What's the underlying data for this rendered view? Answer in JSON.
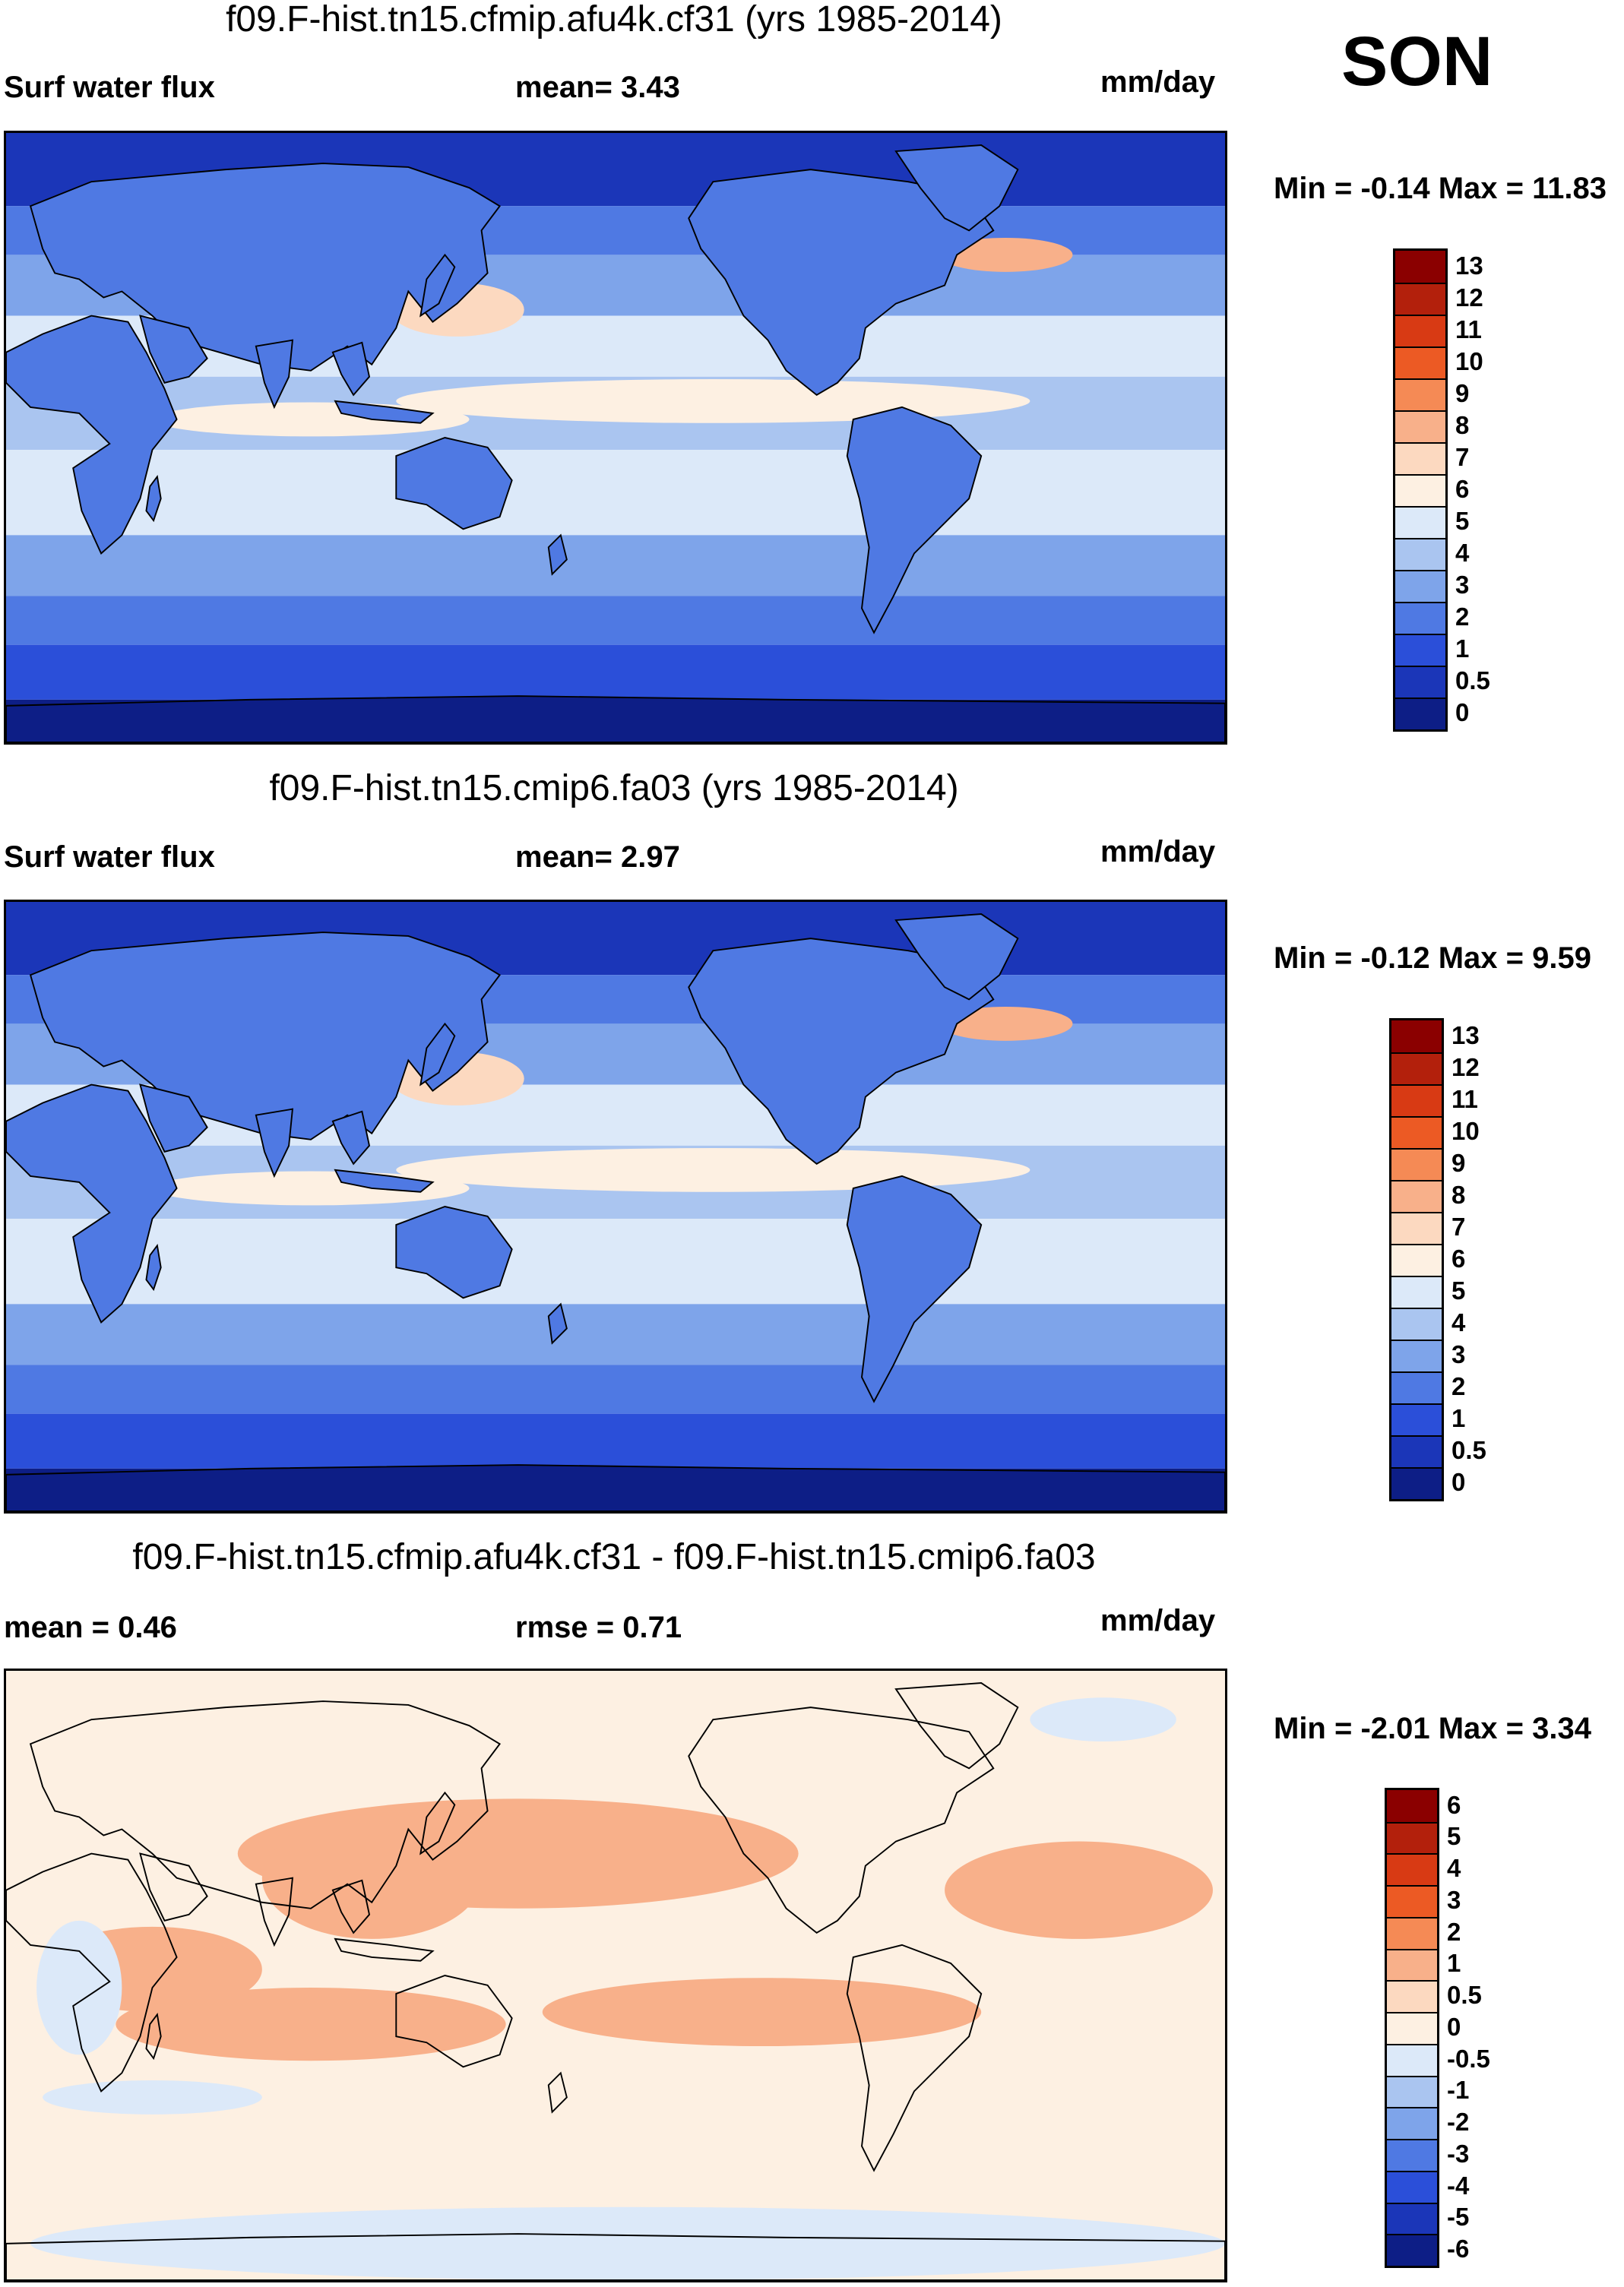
{
  "season": "SON",
  "panels": [
    {
      "title": "f09.F-hist.tn15.cfmip.afu4k.cf31 (yrs 1985-2014)",
      "left_label": "Surf water flux",
      "mid_label": "mean=   3.43",
      "units": "mm/day",
      "minmax": "Min =  -0.14 Max =  11.83",
      "field": "total",
      "colorbar": {
        "labels": [
          "13",
          "12",
          "11",
          "10",
          "9",
          "8",
          "7",
          "6",
          "5",
          "4",
          "3",
          "2",
          "1",
          "0.5",
          "0"
        ],
        "colors": [
          "#8b0000",
          "#b3200c",
          "#d83a14",
          "#ec5a24",
          "#f58a55",
          "#f8b08a",
          "#fcd9c0",
          "#fdf0e2",
          "#dce9f9",
          "#aac5f0",
          "#7ea4ea",
          "#4f79e3",
          "#2b4fd9",
          "#1b36b8",
          "#0d1e86"
        ]
      }
    },
    {
      "title": "f09.F-hist.tn15.cmip6.fa03 (yrs 1985-2014)",
      "left_label": "Surf water flux",
      "mid_label": "mean=   2.97",
      "units": "mm/day",
      "minmax": "Min =  -0.12 Max =   9.59",
      "field": "total",
      "colorbar": {
        "labels": [
          "13",
          "12",
          "11",
          "10",
          "9",
          "8",
          "7",
          "6",
          "5",
          "4",
          "3",
          "2",
          "1",
          "0.5",
          "0"
        ],
        "colors": [
          "#8b0000",
          "#b3200c",
          "#d83a14",
          "#ec5a24",
          "#f58a55",
          "#f8b08a",
          "#fcd9c0",
          "#fdf0e2",
          "#dce9f9",
          "#aac5f0",
          "#7ea4ea",
          "#4f79e3",
          "#2b4fd9",
          "#1b36b8",
          "#0d1e86"
        ]
      }
    },
    {
      "title": "f09.F-hist.tn15.cfmip.afu4k.cf31 - f09.F-hist.tn15.cmip6.fa03",
      "left_label": "mean =   0.46",
      "mid_label": "rmse =   0.71",
      "units": "mm/day",
      "minmax": "Min =  -2.01 Max =   3.34",
      "field": "diff",
      "colorbar": {
        "labels": [
          "6",
          "5",
          "4",
          "3",
          "2",
          "1",
          "0.5",
          "0",
          "-0.5",
          "-1",
          "-2",
          "-3",
          "-4",
          "-5",
          "-6"
        ],
        "colors": [
          "#8b0000",
          "#b3200c",
          "#d83a14",
          "#ec5a24",
          "#f58a55",
          "#f8b08a",
          "#fcd9c0",
          "#fdf0e2",
          "#dce9f9",
          "#aac5f0",
          "#7ea4ea",
          "#4f79e3",
          "#2b4fd9",
          "#1b36b8",
          "#0d1e86"
        ]
      }
    }
  ]
}
